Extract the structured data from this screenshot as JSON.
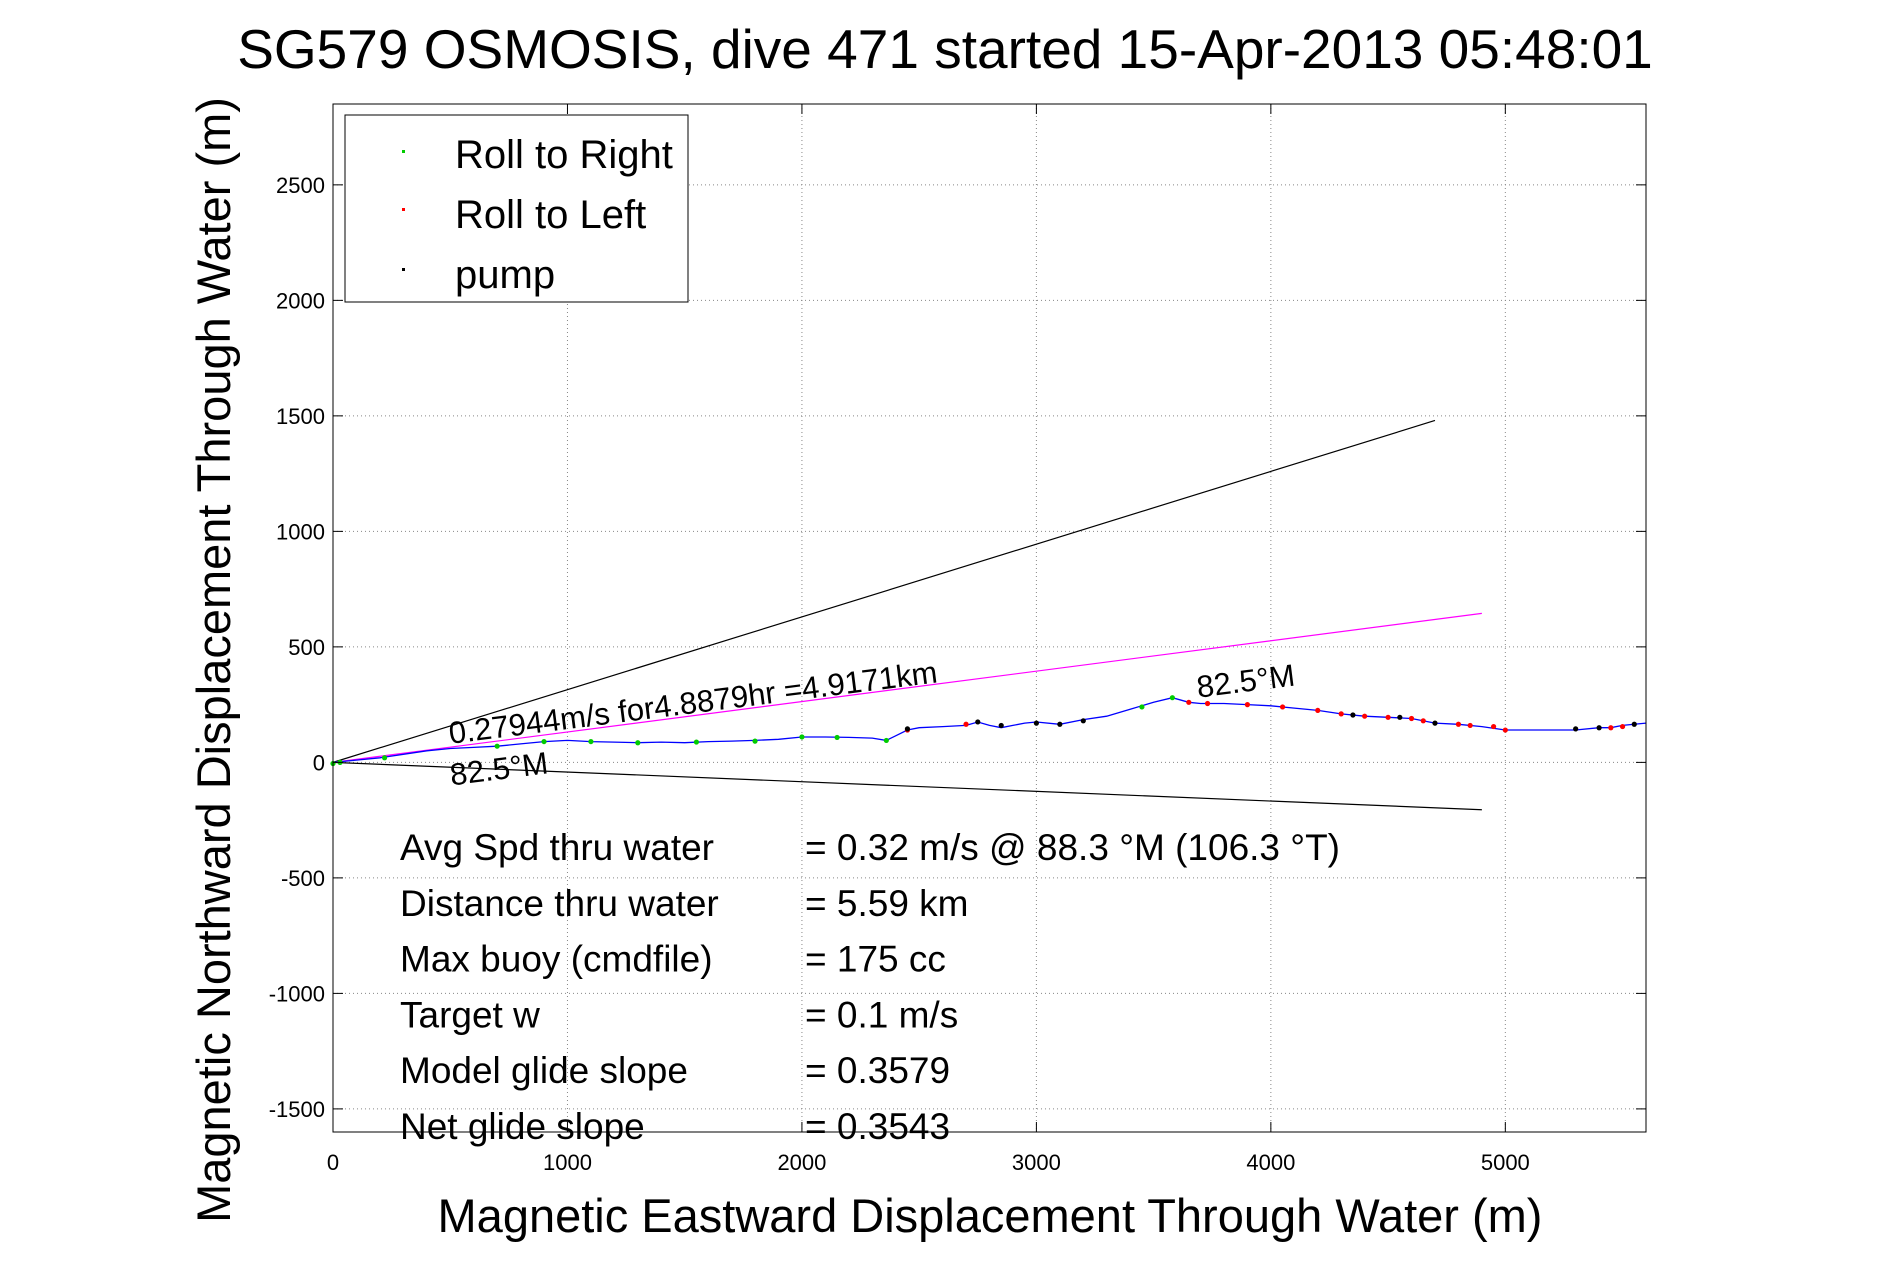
{
  "chart_data": {
    "type": "line",
    "title": "SG579 OSMOSIS, dive 471 started 15-Apr-2013 05:48:01",
    "xlabel": "Magnetic Eastward Displacement Through Water (m)",
    "ylabel": "Magnetic Northward Displacement Through Water (m)",
    "xlim": [
      0,
      5600
    ],
    "ylim": [
      -1600,
      2850
    ],
    "xticks": [
      0,
      1000,
      2000,
      3000,
      4000,
      5000
    ],
    "xtick_labels": [
      "0",
      "1000",
      "2000",
      "3000",
      "4000",
      "5000"
    ],
    "yticks": [
      -1500,
      -1000,
      -500,
      0,
      500,
      1000,
      1500,
      2000,
      2500
    ],
    "ytick_labels": [
      "-1500",
      "-1000",
      "-500",
      "0",
      "500",
      "1000",
      "1500",
      "2000",
      "2500"
    ],
    "grid": true,
    "legend": {
      "position": "top-left",
      "entries": [
        {
          "label": "Roll to Right",
          "color": "#00cc00"
        },
        {
          "label": "Roll to Left",
          "color": "#ff0000"
        },
        {
          "label": "pump",
          "color": "#000000"
        }
      ]
    },
    "track": {
      "color": "#0000ff",
      "x": [
        0,
        100,
        200,
        300,
        400,
        500,
        600,
        700,
        800,
        900,
        1000,
        1100,
        1200,
        1300,
        1400,
        1500,
        1600,
        1700,
        1800,
        1900,
        2000,
        2100,
        2200,
        2300,
        2360,
        2400,
        2450,
        2500,
        2600,
        2700,
        2750,
        2800,
        2850,
        2900,
        2950,
        3000,
        3100,
        3200,
        3300,
        3400,
        3500,
        3580,
        3650,
        3700,
        3800,
        3900,
        4000,
        4100,
        4200,
        4300,
        4400,
        4500,
        4600,
        4700,
        4800,
        4900,
        5000,
        5100,
        5200,
        5300,
        5400,
        5450,
        5500,
        5600
      ],
      "y": [
        0,
        10,
        20,
        35,
        50,
        60,
        65,
        70,
        80,
        90,
        95,
        90,
        88,
        85,
        88,
        85,
        90,
        92,
        95,
        100,
        110,
        110,
        108,
        105,
        95,
        115,
        140,
        150,
        155,
        160,
        175,
        160,
        150,
        160,
        170,
        175,
        165,
        185,
        200,
        230,
        260,
        280,
        260,
        255,
        255,
        250,
        245,
        235,
        225,
        210,
        200,
        195,
        190,
        170,
        165,
        155,
        140,
        140,
        140,
        140,
        150,
        150,
        160,
        170
      ]
    },
    "markers": {
      "roll_right": {
        "color": "#00cc00",
        "x": [
          0,
          30,
          220,
          700,
          900,
          1100,
          1300,
          1550,
          1800,
          2000,
          2150,
          2360,
          3450,
          3580
        ],
        "y": [
          -5,
          0,
          20,
          70,
          90,
          90,
          85,
          88,
          92,
          110,
          108,
          95,
          240,
          280
        ]
      },
      "roll_left": {
        "color": "#ff0000",
        "x": [
          2450,
          2700,
          3650,
          3730,
          3900,
          4050,
          4200,
          4300,
          4400,
          4500,
          4600,
          4650,
          4800,
          4850,
          4950,
          5000,
          5450,
          5500
        ],
        "y": [
          140,
          165,
          260,
          255,
          250,
          240,
          225,
          210,
          200,
          195,
          190,
          180,
          165,
          160,
          155,
          140,
          150,
          155
        ]
      },
      "pump": {
        "color": "#000000",
        "x": [
          2450,
          2750,
          2850,
          3000,
          3100,
          3200,
          4350,
          4550,
          4700,
          5300,
          5400,
          5550
        ],
        "y": [
          145,
          175,
          160,
          170,
          165,
          180,
          205,
          195,
          170,
          145,
          150,
          165
        ]
      }
    },
    "reference_lines": [
      {
        "name": "upper-heading-line",
        "color": "#000000",
        "x": [
          0,
          4700
        ],
        "y": [
          0,
          1480
        ]
      },
      {
        "name": "lower-heading-line",
        "color": "#000000",
        "x": [
          0,
          4900
        ],
        "y": [
          0,
          -205
        ]
      },
      {
        "name": "current-line",
        "color": "#ff00ff",
        "x": [
          0,
          4900
        ],
        "y": [
          0,
          645
        ]
      }
    ],
    "annotations": [
      {
        "text": "0.27944m/s for4.8879hr =4.9171km",
        "x": 500,
        "y": 80,
        "rotate": -7.2,
        "size": 31
      },
      {
        "text": "82.5°M",
        "x": 505,
        "y": -100,
        "rotate": -7.2,
        "size": 31
      },
      {
        "text": "82.5°M",
        "x": 3690,
        "y": 280,
        "rotate": -7.2,
        "size": 31
      }
    ],
    "stats": [
      {
        "label": "Avg Spd thru water",
        "value": "=  0.32 m/s @  88.3 °M (106.3 °T)"
      },
      {
        "label": "Distance thru water",
        "value": "=  5.59 km"
      },
      {
        "label": "Max buoy (cmdfile)",
        "value": "= 175 cc"
      },
      {
        "label": "Target w",
        "value": "= 0.1 m/s"
      },
      {
        "label": "Model glide slope",
        "value": "= 0.3579"
      },
      {
        "label": "Net glide slope",
        "value": "= 0.3543"
      }
    ]
  }
}
